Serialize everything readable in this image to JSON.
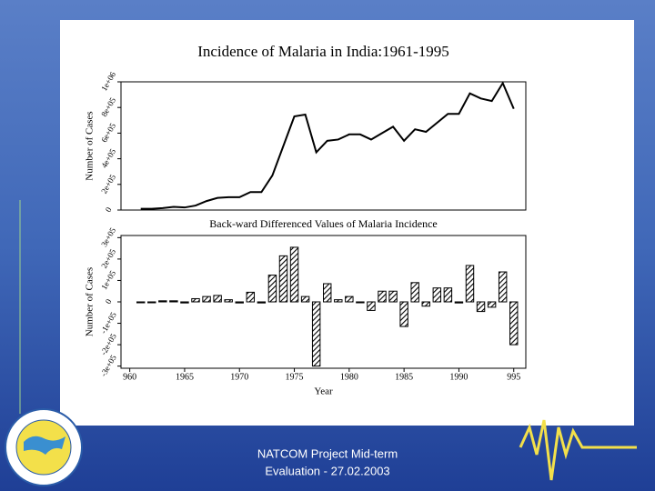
{
  "chart_data": [
    {
      "type": "line",
      "title": "Incidence of Malaria in India:1961-1995",
      "ylabel": "Number of Cases",
      "x": [
        1961,
        1962,
        1963,
        1964,
        1965,
        1966,
        1967,
        1968,
        1969,
        1970,
        1971,
        1972,
        1973,
        1974,
        1975,
        1976,
        1977,
        1978,
        1979,
        1980,
        1981,
        1982,
        1983,
        1984,
        1985,
        1986,
        1987,
        1988,
        1989,
        1990,
        1991,
        1992,
        1993,
        1994,
        1995
      ],
      "series": [
        {
          "name": "Number of Cases",
          "color": "#000000",
          "values": [
            10000,
            10000,
            15000,
            25000,
            20000,
            35000,
            70000,
            95000,
            100000,
            100000,
            140000,
            140000,
            270000,
            500000,
            730000,
            745000,
            450000,
            540000,
            550000,
            590000,
            590000,
            550000,
            600000,
            650000,
            540000,
            630000,
            610000,
            680000,
            750000,
            750000,
            910000,
            870000,
            850000,
            990000,
            790000
          ]
        }
      ],
      "xlim": [
        1959.2,
        1996.1
      ],
      "ylim": [
        0,
        1000000
      ],
      "yticks": [
        {
          "value": 0,
          "label": "0"
        },
        {
          "value": 200000,
          "label": "2e+05"
        },
        {
          "value": 400000,
          "label": "4e+05"
        },
        {
          "value": 600000,
          "label": "6e+05"
        },
        {
          "value": 800000,
          "label": "8e+05"
        },
        {
          "value": 1000000,
          "label": "1e+06"
        }
      ]
    },
    {
      "type": "bar",
      "title": "Back-ward Differenced Values of Malaria Incidence",
      "ylabel": "Number of Cases",
      "xlabel": "Year",
      "x": [
        1961,
        1962,
        1963,
        1964,
        1965,
        1966,
        1967,
        1968,
        1969,
        1970,
        1971,
        1972,
        1973,
        1974,
        1975,
        1976,
        1977,
        1978,
        1979,
        1980,
        1981,
        1982,
        1983,
        1984,
        1985,
        1986,
        1987,
        1988,
        1989,
        1990,
        1991,
        1992,
        1993,
        1994,
        1995
      ],
      "series": [
        {
          "name": "Number of Cases",
          "color": "#000000",
          "values": [
            0,
            0,
            5000,
            5000,
            -5000,
            15000,
            25000,
            30000,
            10000,
            -5000,
            45000,
            -5000,
            125000,
            215000,
            255000,
            25000,
            -300000,
            85000,
            10000,
            25000,
            0,
            -40000,
            50000,
            50000,
            -115000,
            90000,
            -20000,
            65000,
            65000,
            -5000,
            170000,
            -45000,
            -25000,
            140000,
            -200000
          ]
        }
      ],
      "xlim": [
        1959.2,
        1996.1
      ],
      "xticks": [
        {
          "value": 1960,
          "label": "960"
        },
        1965,
        1970,
        1975,
        1980,
        1985,
        1990,
        {
          "value": 1995,
          "label": "995"
        }
      ],
      "ylim": [
        -310000,
        310000
      ],
      "yticks": [
        {
          "value": -300000,
          "label": "-3e+05"
        },
        {
          "value": -200000,
          "label": "-2e+05"
        },
        {
          "value": -100000,
          "label": "-1e+05"
        },
        {
          "value": 0,
          "label": "0"
        },
        {
          "value": 100000,
          "label": "1e+05"
        },
        {
          "value": 200000,
          "label": "2e+05"
        },
        {
          "value": 300000,
          "label": "3e+05"
        }
      ]
    }
  ],
  "footer": {
    "lines": [
      "NATCOM Project Mid-term",
      "Evaluation - 27.02.2003"
    ]
  }
}
